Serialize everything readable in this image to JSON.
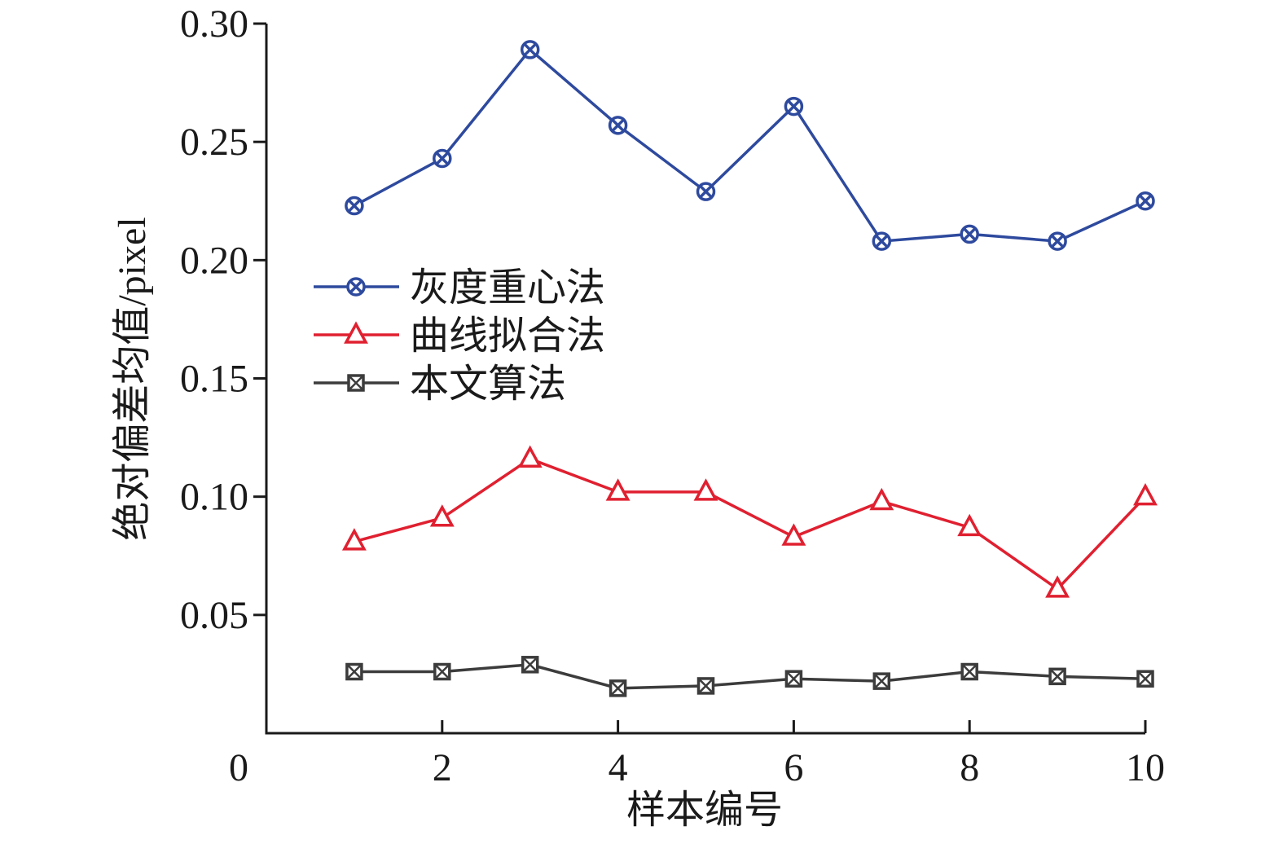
{
  "chart_data": {
    "type": "line",
    "x_label": "样本编号",
    "y_label": "绝对偏差均值/pixel",
    "x": [
      1,
      2,
      3,
      4,
      5,
      6,
      7,
      8,
      9,
      10
    ],
    "xlim": [
      0,
      10
    ],
    "xticks": [
      0,
      2,
      4,
      6,
      8,
      10
    ],
    "ylim": [
      0,
      0.3
    ],
    "yticks": [
      0.05,
      {
        "value": 0.1,
        "label": "0.10"
      },
      0.15,
      {
        "value": 0.2,
        "label": "0.20"
      },
      0.25,
      {
        "value": 0.3,
        "label": "0.30"
      }
    ],
    "grid": false,
    "legend": "upper left",
    "series": [
      {
        "name": "灰度重心法",
        "color": "#2e4a9e",
        "marker": "circle-x",
        "values": [
          0.223,
          0.243,
          0.289,
          0.257,
          0.229,
          0.265,
          0.208,
          0.211,
          0.208,
          0.225
        ]
      },
      {
        "name": "曲线拟合法",
        "color": "#e02030",
        "marker": "triangle",
        "values": [
          0.081,
          0.091,
          0.116,
          0.102,
          0.102,
          0.083,
          0.098,
          0.087,
          0.061,
          0.1
        ]
      },
      {
        "name": "本文算法",
        "color": "#3c3c3c",
        "marker": "square-x",
        "values": [
          0.026,
          0.026,
          0.029,
          0.019,
          0.02,
          0.023,
          0.022,
          0.026,
          0.024,
          0.023
        ]
      }
    ]
  }
}
